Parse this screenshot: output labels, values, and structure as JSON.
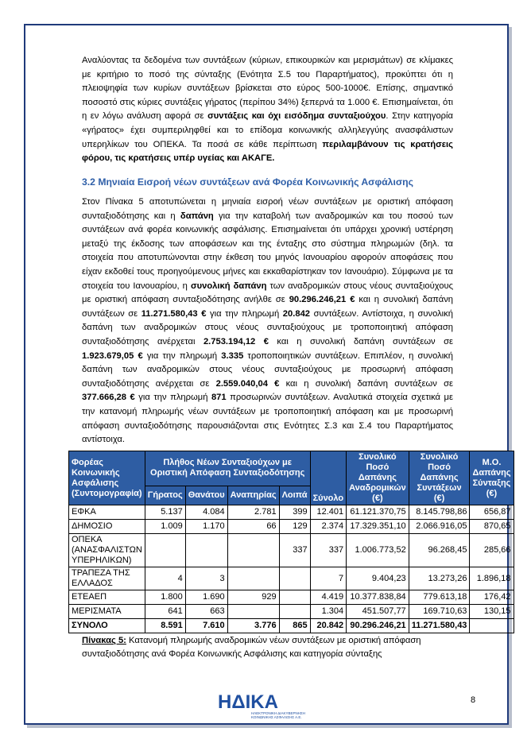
{
  "body": {
    "paragraphs": [
      [
        "Αναλύοντας τα δεδομένα των συντάξεων (κύριων, επικουρικών και μερισμάτων) σε κλίμακες με κριτήριο το ποσό της σύνταξης (Ενότητα Σ.5 του Παραρτήματος), προκύπτει ότι η πλειοψηφία των κυρίων συντάξεων βρίσκεται στο εύρος 500-1000€. Επίσης, σημαντικό ποσοστό στις κύριες συντάξεις γήρατος (περίπου 34%) ξεπερνά τα 1.000 €. Επισημαίνεται, ότι η εν λόγω ανάλυση αφορά σε ",
        "συντάξεις και όχι εισόδημα συνταξιούχου",
        ". Στην κατηγορία «γήρατος» έχει συμπεριληφθεί και το επίδομα κοινωνικής αλληλεγγύης ανασφάλιστων υπερηλίκων του ΟΠΕΚΑ. Τα ποσά σε κάθε περίπτωση ",
        "περιλαμβάνουν τις κρατήσεις φόρου, τις κρατήσεις υπέρ υγείας και ΑΚΑΓΕ."
      ],
      [
        "Στον Πίνακα 5 αποτυπώνεται η μηνιαία εισροή νέων συντάξεων με οριστική απόφαση συνταξιοδότησης και η ",
        "δαπάνη",
        " για την καταβολή των αναδρομικών και του ποσού των συντάξεων ανά φορέα κοινωνικής ασφάλισης. Επισημαίνεται ότι υπάρχει χρονική υστέρηση μεταξύ της έκδοσης των αποφάσεων και της ένταξης στο σύστημα πληρωμών (δηλ. τα στοιχεία που αποτυπώνονται στην έκθεση του μηνός Ιανουαρίου αφορούν αποφάσεις που είχαν εκδοθεί τους προηγούμενους μήνες και εκκαθαρίστηκαν τον Ιανουάριο). Σύμφωνα με τα στοιχεία του Ιανουαρίου, η ",
        "συνολική δαπάνη",
        " των αναδρομικών στους νέους συνταξιούχους με οριστική απόφαση συνταξιοδότησης ανήλθε σε ",
        "90.296.246,21 €",
        " και η συνολική δαπάνη συντάξεων σε ",
        "11.271.580,43 €",
        " για την πληρωμή ",
        "20.842",
        " συντάξεων. Αντίστοιχα, η συνολική δαπάνη των αναδρομικών στους νέους συνταξιούχους με τροποποιητική απόφαση συνταξιοδότησης ανέρχεται ",
        "2.753.194,12 €",
        " και η συνολική δαπάνη συντάξεων σε ",
        "1.923.679,05 €",
        " για την πληρωμή ",
        "3.335",
        " τροποποιητικών συντάξεων. Επιπλέον, η συνολική δαπάνη των αναδρομικών στους νέους συνταξιούχους με προσωρινή απόφαση συνταξιοδότησης ανέρχεται σε ",
        "2.559.040,04 €",
        " και η συνολική δαπάνη συντάξεων σε ",
        "377.666,28 €",
        " για την πληρωμή ",
        "871",
        " προσωρινών συντάξεων. Αναλυτικά στοιχεία σχετικά με την κατανομή πληρωμής νέων συντάξεων με τροποποιητική απόφαση και με προσωρινή απόφαση συνταξιοδότησης παρουσιάζονται στις Ενότητες Σ.3 και Σ.4 του Παραρτήματος αντίστοιχα."
      ]
    ],
    "heading": "3.2  Μηνιαία Εισροή νέων συντάξεων ανά Φορέα Κοινωνικής Ασφάλισης"
  },
  "table": {
    "header": {
      "fund": "Φορέας Κοινωνικής Ασφάλισης (Συντομογραφία)",
      "group": "Πλήθος Νέων Συνταξιούχων με Οριστική Απόφαση Συνταξιοδότησης",
      "sub": [
        "Γήρατος",
        "Θανάτου",
        "Αναπηρίας",
        "Λοιπά"
      ],
      "total": "Σύνολο",
      "retro": "Συνολικό Ποσό Δαπάνης Αναδρομικών (€)",
      "pensions": "Συνολικό Ποσό Δαπάνης Συντάξεων (€)",
      "avg": "Μ.Ο. Δαπάνης Σύνταξης (€)"
    },
    "rows": [
      [
        "ΕΦΚΑ",
        "5.137",
        "4.084",
        "2.781",
        "399",
        "12.401",
        "61.121.370,75",
        "8.145.798,86",
        "656,87"
      ],
      [
        "ΔΗΜΟΣΙΟ",
        "1.009",
        "1.170",
        "66",
        "129",
        "2.374",
        "17.329.351,10",
        "2.066.916,05",
        "870,65"
      ],
      [
        "ΟΠΕΚΑ (ΑΝΑΣΦΑΛΙΣΤΩΝ ΥΠΕΡΗΛΙΚΩΝ)",
        null,
        null,
        null,
        "337",
        "337",
        "1.006.773,52",
        "96.268,45",
        "285,66"
      ],
      [
        "ΤΡΑΠΕΖΑ ΤΗΣ ΕΛΛΑΔΟΣ",
        "4",
        "3",
        null,
        null,
        "7",
        "9.404,23",
        "13.273,26",
        "1.896,18"
      ],
      [
        "ΕΤΕΑΕΠ",
        "1.800",
        "1.690",
        "929",
        null,
        "4.419",
        "10.377.838,84",
        "779.613,18",
        "176,42"
      ],
      [
        "ΜΕΡΙΣΜΑΤΑ",
        "641",
        "663",
        null,
        null,
        "1.304",
        "451.507,77",
        "169.710,63",
        "130,15"
      ],
      [
        "ΣΥΝΟΛΟ",
        "8.591",
        "7.610",
        "3.776",
        "865",
        "20.842",
        "90.296.246,21",
        "11.271.580,43",
        null
      ]
    ],
    "caption_label": "Πίνακας 5:",
    "caption_text": " Κατανομή πληρωμής αναδρομικών νέων συντάξεων με οριστική απόφαση συνταξιοδότησης ανά Φορέα Κοινωνικής Ασφάλισης και κατηγορία σύνταξης"
  },
  "footer": {
    "logo": "ΗΔΙΚΑ",
    "logo_sub": "ΗΛΕΚΤΡΟΝΙΚΗ ΔΙΑΚΥΒΕΡΝΗΣΗ ΚΟΙΝΩΝΙΚΗΣ ΑΣΦΑΛΙΣΗΣ Α.Ε.",
    "page": "8"
  }
}
